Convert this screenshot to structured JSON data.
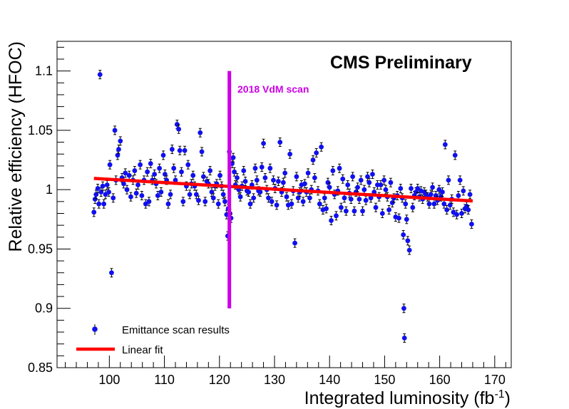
{
  "chart_data": {
    "type": "scatter",
    "xlabel": "Integrated luminosity (fb",
    "xlabel_sup": "-1",
    "xlabel_end": ")",
    "ylabel": "Relative efficiency (HFOC)",
    "xlim": [
      90.5,
      173
    ],
    "ylim": [
      0.85,
      1.125
    ],
    "x_ticks": [
      100,
      110,
      120,
      130,
      140,
      150,
      160,
      170
    ],
    "x_tick_labels": [
      "100",
      "110",
      "120",
      "130",
      "140",
      "150",
      "160",
      "170"
    ],
    "y_ticks": [
      0.85,
      0.9,
      0.95,
      1.0,
      1.05,
      1.1
    ],
    "y_tick_labels": [
      "0.85",
      "0.9",
      "0.95",
      "1",
      "1.05",
      "1.1"
    ],
    "grid": false,
    "legend_position": "bottom-left",
    "annotation_main": "CMS Preliminary",
    "annotation_vdm": "2018 VdM scan",
    "vdm_line": {
      "x": 121.8,
      "y_from": 0.9,
      "y_to": 1.1
    },
    "colors": {
      "points": "#1010ee",
      "fit": "#ff0000",
      "vdm": "#cc00e6"
    },
    "series": [
      {
        "name": "Emittance scan results",
        "points": [
          [
            97.2,
            0.981
          ],
          [
            97.4,
            0.992
          ],
          [
            97.6,
            0.996
          ],
          [
            97.9,
            1.001
          ],
          [
            98.1,
            0.988
          ],
          [
            98.3,
            1.097
          ],
          [
            98.5,
            0.998
          ],
          [
            98.8,
            1.003
          ],
          [
            99.0,
            0.988
          ],
          [
            99.3,
            0.996
          ],
          [
            99.6,
            1.004
          ],
          [
            99.9,
            0.998
          ],
          [
            100.1,
            1.021
          ],
          [
            100.4,
            0.93
          ],
          [
            100.7,
            0.993
          ],
          [
            101.0,
            1.05
          ],
          [
            101.2,
            1.008
          ],
          [
            101.5,
            1.029
          ],
          [
            101.7,
            1.034
          ],
          [
            102.0,
            1.041
          ],
          [
            102.3,
            1.01
          ],
          [
            102.6,
            1.005
          ],
          [
            102.9,
            1.014
          ],
          [
            103.2,
            1.0
          ],
          [
            103.6,
            1.012
          ],
          [
            103.9,
            0.994
          ],
          [
            104.3,
            1.008
          ],
          [
            104.6,
            1.016
          ],
          [
            104.9,
            0.997
          ],
          [
            105.2,
            1.004
          ],
          [
            105.6,
            1.021
          ],
          [
            105.9,
            0.995
          ],
          [
            106.3,
            1.008
          ],
          [
            106.6,
            0.988
          ],
          [
            106.9,
            1.015
          ],
          [
            107.2,
            0.99
          ],
          [
            107.5,
            1.022
          ],
          [
            107.8,
            1.008
          ],
          [
            108.2,
            1.013
          ],
          [
            108.5,
            1.005
          ],
          [
            108.8,
            0.995
          ],
          [
            109.1,
            1.018
          ],
          [
            109.4,
            0.998
          ],
          [
            109.8,
            1.029
          ],
          [
            110.1,
            1.013
          ],
          [
            110.4,
            1.008
          ],
          [
            110.7,
            0.988
          ],
          [
            111.1,
            0.996
          ],
          [
            111.4,
            1.034
          ],
          [
            111.7,
            1.018
          ],
          [
            112.0,
            1.008
          ],
          [
            112.3,
            1.055
          ],
          [
            112.6,
            1.051
          ],
          [
            112.8,
            1.033
          ],
          [
            113.1,
            1.015
          ],
          [
            113.4,
            0.99
          ],
          [
            113.7,
            1.033
          ],
          [
            114.0,
            1.003
          ],
          [
            114.3,
            1.021
          ],
          [
            114.6,
            0.996
          ],
          [
            114.9,
            1.005
          ],
          [
            115.2,
            1.012
          ],
          [
            115.5,
            1.003
          ],
          [
            115.8,
            0.996
          ],
          [
            116.2,
            0.991
          ],
          [
            116.5,
            1.048
          ],
          [
            116.8,
            1.032
          ],
          [
            117.1,
            1.011
          ],
          [
            117.4,
            0.99
          ],
          [
            117.7,
            1.007
          ],
          [
            118.0,
            1.005
          ],
          [
            118.3,
            1.016
          ],
          [
            118.6,
            0.998
          ],
          [
            118.9,
            0.993
          ],
          [
            119.2,
            1.003
          ],
          [
            119.5,
            1.005
          ],
          [
            119.8,
            0.988
          ],
          [
            120.1,
            1.012
          ],
          [
            120.4,
            1.003
          ],
          [
            120.7,
            0.996
          ],
          [
            121.0,
            0.99
          ],
          [
            121.3,
            0.979
          ],
          [
            121.5,
            0.961
          ],
          [
            121.6,
            0.984
          ],
          [
            121.8,
            1.032
          ],
          [
            121.9,
            0.98
          ],
          [
            122.1,
            0.976
          ],
          [
            122.3,
            1.022
          ],
          [
            122.5,
            1.027
          ],
          [
            122.7,
            1.015
          ],
          [
            122.9,
            1.004
          ],
          [
            123.2,
            1.01
          ],
          [
            123.5,
            1.0
          ],
          [
            123.8,
            0.994
          ],
          [
            124.1,
            1.003
          ],
          [
            124.4,
            1.016
          ],
          [
            124.7,
            1.007
          ],
          [
            125.0,
            0.999
          ],
          [
            125.3,
            0.998
          ],
          [
            125.6,
            0.988
          ],
          [
            125.9,
            1.004
          ],
          [
            126.2,
            0.993
          ],
          [
            126.5,
            1.018
          ],
          [
            126.8,
            1.008
          ],
          [
            127.1,
            0.999
          ],
          [
            127.4,
            0.998
          ],
          [
            127.7,
            1.019
          ],
          [
            128.0,
            1.039
          ],
          [
            128.3,
            1.01
          ],
          [
            128.6,
            1.0
          ],
          [
            128.9,
            0.993
          ],
          [
            129.2,
            1.018
          ],
          [
            129.5,
            0.99
          ],
          [
            129.8,
            1.008
          ],
          [
            130.1,
            1.001
          ],
          [
            130.4,
            0.987
          ],
          [
            130.7,
            1.007
          ],
          [
            131.0,
            1.04
          ],
          [
            131.3,
            0.998
          ],
          [
            131.6,
            1.006
          ],
          [
            131.9,
            1.014
          ],
          [
            132.2,
            0.994
          ],
          [
            132.5,
            0.987
          ],
          [
            132.8,
            1.03
          ],
          [
            133.1,
            0.988
          ],
          [
            133.4,
            0.999
          ],
          [
            133.7,
            0.955
          ],
          [
            134.0,
            1.011
          ],
          [
            134.3,
            0.993
          ],
          [
            134.6,
            0.998
          ],
          [
            134.9,
            1.004
          ],
          [
            135.2,
            0.99
          ],
          [
            135.5,
            1.005
          ],
          [
            135.8,
            0.998
          ],
          [
            136.1,
            1.014
          ],
          [
            136.4,
            0.993
          ],
          [
            136.7,
            1.0
          ],
          [
            137.0,
            1.025
          ],
          [
            137.3,
            1.01
          ],
          [
            137.6,
            1.031
          ],
          [
            137.9,
            0.999
          ],
          [
            138.2,
            0.988
          ],
          [
            138.5,
            1.036
          ],
          [
            138.8,
            0.983
          ],
          [
            139.1,
            0.993
          ],
          [
            139.4,
            0.984
          ],
          [
            139.7,
            1.006
          ],
          [
            140.0,
            1.002
          ],
          [
            140.3,
            0.974
          ],
          [
            140.6,
            1.016
          ],
          [
            140.9,
            0.996
          ],
          [
            141.2,
            0.978
          ],
          [
            141.5,
            0.999
          ],
          [
            141.8,
            1.018
          ],
          [
            142.1,
            0.985
          ],
          [
            142.4,
            1.009
          ],
          [
            142.7,
            0.993
          ],
          [
            143.0,
            0.982
          ],
          [
            143.3,
            1.004
          ],
          [
            143.6,
            0.997
          ],
          [
            143.9,
            0.992
          ],
          [
            144.2,
            1.011
          ],
          [
            144.5,
            0.982
          ],
          [
            144.8,
            0.998
          ],
          [
            145.1,
            1.002
          ],
          [
            145.4,
            0.992
          ],
          [
            145.7,
            1.008
          ],
          [
            146.0,
            0.982
          ],
          [
            146.3,
            1.0
          ],
          [
            146.6,
            0.991
          ],
          [
            146.9,
            1.011
          ],
          [
            147.2,
            1.006
          ],
          [
            147.5,
            0.993
          ],
          [
            147.8,
            1.013
          ],
          [
            148.1,
            0.998
          ],
          [
            148.4,
            0.985
          ],
          [
            148.7,
            1.004
          ],
          [
            149.0,
            0.994
          ],
          [
            149.3,
            1.004
          ],
          [
            149.6,
            0.98
          ],
          [
            149.9,
            1.008
          ],
          [
            150.2,
            1.0
          ],
          [
            150.5,
            0.994
          ],
          [
            150.8,
            0.983
          ],
          [
            151.1,
            1.006
          ],
          [
            151.4,
            0.989
          ],
          [
            151.7,
            0.993
          ],
          [
            152.0,
            0.977
          ],
          [
            152.3,
            0.995
          ],
          [
            152.6,
            0.976
          ],
          [
            152.9,
            1.001
          ],
          [
            153.2,
            0.993
          ],
          [
            153.4,
            0.962
          ],
          [
            153.5,
            0.9
          ],
          [
            153.6,
            0.875
          ],
          [
            153.8,
            0.988
          ],
          [
            154.0,
            0.975
          ],
          [
            154.2,
            0.957
          ],
          [
            154.5,
            0.949
          ],
          [
            154.8,
            1.001
          ],
          [
            155.1,
            0.985
          ],
          [
            155.4,
            0.995
          ],
          [
            155.7,
            0.998
          ],
          [
            156.0,
            1.001
          ],
          [
            156.3,
            0.994
          ],
          [
            156.6,
            0.999
          ],
          [
            156.9,
            0.992
          ],
          [
            157.2,
            0.998
          ],
          [
            157.5,
            0.996
          ],
          [
            157.8,
            0.994
          ],
          [
            158.1,
            0.988
          ],
          [
            158.4,
            0.996
          ],
          [
            158.7,
            1.002
          ],
          [
            159.0,
            0.988
          ],
          [
            159.3,
            0.995
          ],
          [
            159.6,
            0.991
          ],
          [
            159.9,
            1.0
          ],
          [
            160.2,
            0.994
          ],
          [
            160.5,
            0.998
          ],
          [
            160.8,
            0.988
          ],
          [
            161.0,
            1.038
          ],
          [
            161.3,
            0.983
          ],
          [
            161.6,
            1.008
          ],
          [
            161.9,
            0.987
          ],
          [
            162.2,
            0.992
          ],
          [
            162.5,
            0.981
          ],
          [
            162.8,
            1.029
          ],
          [
            163.1,
            0.979
          ],
          [
            163.4,
            0.995
          ],
          [
            163.7,
            1.008
          ],
          [
            164.0,
            0.98
          ],
          [
            164.3,
            0.999
          ],
          [
            164.6,
            0.984
          ],
          [
            164.9,
            0.986
          ],
          [
            165.2,
            0.983
          ],
          [
            165.5,
            0.996
          ],
          [
            165.8,
            0.971
          ]
        ]
      },
      {
        "name": "Linear fit",
        "x": [
          97.2,
          166.0
        ],
        "y": [
          1.0095,
          0.9905
        ]
      }
    ]
  }
}
